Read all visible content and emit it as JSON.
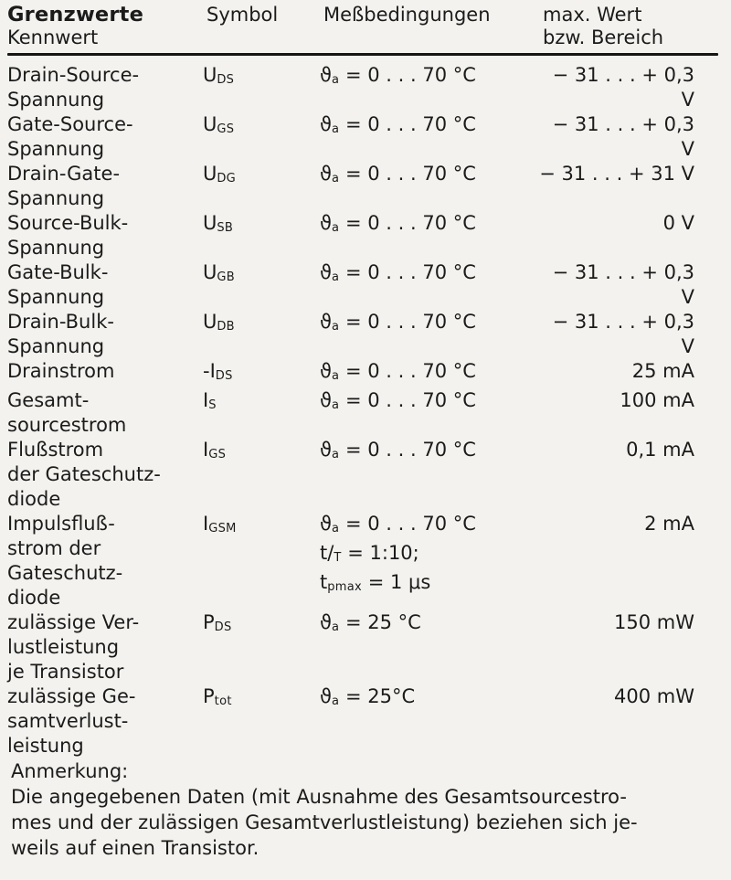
{
  "header": {
    "title": "Grenzwerte",
    "col_kennwert": "Kennwert",
    "col_symbol": "Symbol",
    "col_conditions": "Meßbedingungen",
    "col_max_line1": "max. Wert",
    "col_max_line2": "bzw. Bereich"
  },
  "rows": [
    {
      "name": "Drain-Source-\nSpannung",
      "sym": {
        "pre": "",
        "base": "U",
        "sub": "DS"
      },
      "cond": [
        {
          "b": "ϑ",
          "s": "a",
          "r": " = 0 . . . 70 °C"
        }
      ],
      "value": "− 31 . . . + 0,3 V"
    },
    {
      "name": "Gate-Source-\nSpannung",
      "sym": {
        "pre": "",
        "base": "U",
        "sub": "GS"
      },
      "cond": [
        {
          "b": "ϑ",
          "s": "a",
          "r": " = 0 . . . 70 °C"
        }
      ],
      "value": "− 31 . . . + 0,3 V"
    },
    {
      "name": "Drain-Gate-\nSpannung",
      "sym": {
        "pre": "",
        "base": "U",
        "sub": "DG"
      },
      "cond": [
        {
          "b": "ϑ",
          "s": "a",
          "r": " = 0 . . . 70 °C"
        }
      ],
      "value": "− 31 . . . + 31 V"
    },
    {
      "name": "Source-Bulk-\nSpannung",
      "sym": {
        "pre": "",
        "base": "U",
        "sub": "SB"
      },
      "cond": [
        {
          "b": "ϑ",
          "s": "a",
          "r": " = 0 . . . 70 °C"
        }
      ],
      "value": "0 V"
    },
    {
      "name": "Gate-Bulk-\nSpannung",
      "sym": {
        "pre": "",
        "base": "U",
        "sub": "GB"
      },
      "cond": [
        {
          "b": "ϑ",
          "s": "a",
          "r": " = 0 . . . 70 °C"
        }
      ],
      "value": "− 31 . . . + 0,3 V"
    },
    {
      "name": "Drain-Bulk-\nSpannung",
      "sym": {
        "pre": "",
        "base": "U",
        "sub": "DB"
      },
      "cond": [
        {
          "b": "ϑ",
          "s": "a",
          "r": " = 0 . . . 70 °C"
        }
      ],
      "value": "− 31 . . . + 0,3 V"
    },
    {
      "name": "Drainstrom",
      "sym": {
        "pre": "-",
        "base": "I",
        "sub": "DS"
      },
      "cond": [
        {
          "b": "ϑ",
          "s": "a",
          "r": " = 0 . . . 70 °C"
        }
      ],
      "value": "25 mA"
    },
    {
      "name": "Gesamt-\nsourcestrom",
      "sym": {
        "pre": "",
        "base": "I",
        "sub": "S"
      },
      "cond": [
        {
          "b": "ϑ",
          "s": "a",
          "r": " = 0 . . . 70 °C"
        }
      ],
      "value": "100 mA"
    },
    {
      "name": "Flußstrom\nder Gateschutz-\ndiode",
      "sym": {
        "pre": "",
        "base": "I",
        "sub": "GS"
      },
      "cond": [
        {
          "b": "ϑ",
          "s": "a",
          "r": " = 0 . . . 70 °C"
        }
      ],
      "value": "0,1 mA"
    },
    {
      "name": "Impulsfluß-\nstrom der\nGateschutz-\ndiode",
      "sym": {
        "pre": "",
        "base": "I",
        "sub": "GSM"
      },
      "cond": [
        {
          "b": "ϑ",
          "s": "a",
          "r": " = 0 . . . 70 °C"
        },
        {
          "b": "t/",
          "s": "T",
          "r": " = 1:10;"
        },
        {
          "b": "t",
          "s": "pmax",
          "r": " = 1 μs"
        }
      ],
      "value": "2 mA"
    },
    {
      "name": "zulässige Ver-\nlustleistung\nje Transistor",
      "sym": {
        "pre": "",
        "base": "P",
        "sub": "DS"
      },
      "cond": [
        {
          "b": "ϑ",
          "s": "a",
          "r": " = 25 °C"
        }
      ],
      "value": "150 mW"
    },
    {
      "name": "zulässige Ge-\nsamtverlust-\nleistung",
      "sym": {
        "pre": "",
        "base": "P",
        "sub": "tot"
      },
      "cond": [
        {
          "b": "ϑ",
          "s": "a",
          "r": " = 25°C"
        }
      ],
      "value": "400 mW"
    }
  ],
  "note": {
    "heading": "Anmerkung:",
    "text": "Die angegebenen Daten (mit Ausnahme des Gesamtsourcestro-\nmes und der zulässigen Gesamtverlustleistung) beziehen sich je-\nweils auf einen Transistor."
  },
  "colors": {
    "background": "#f3f2ee",
    "ink": "#1b1b1b",
    "rule": "#161616"
  }
}
